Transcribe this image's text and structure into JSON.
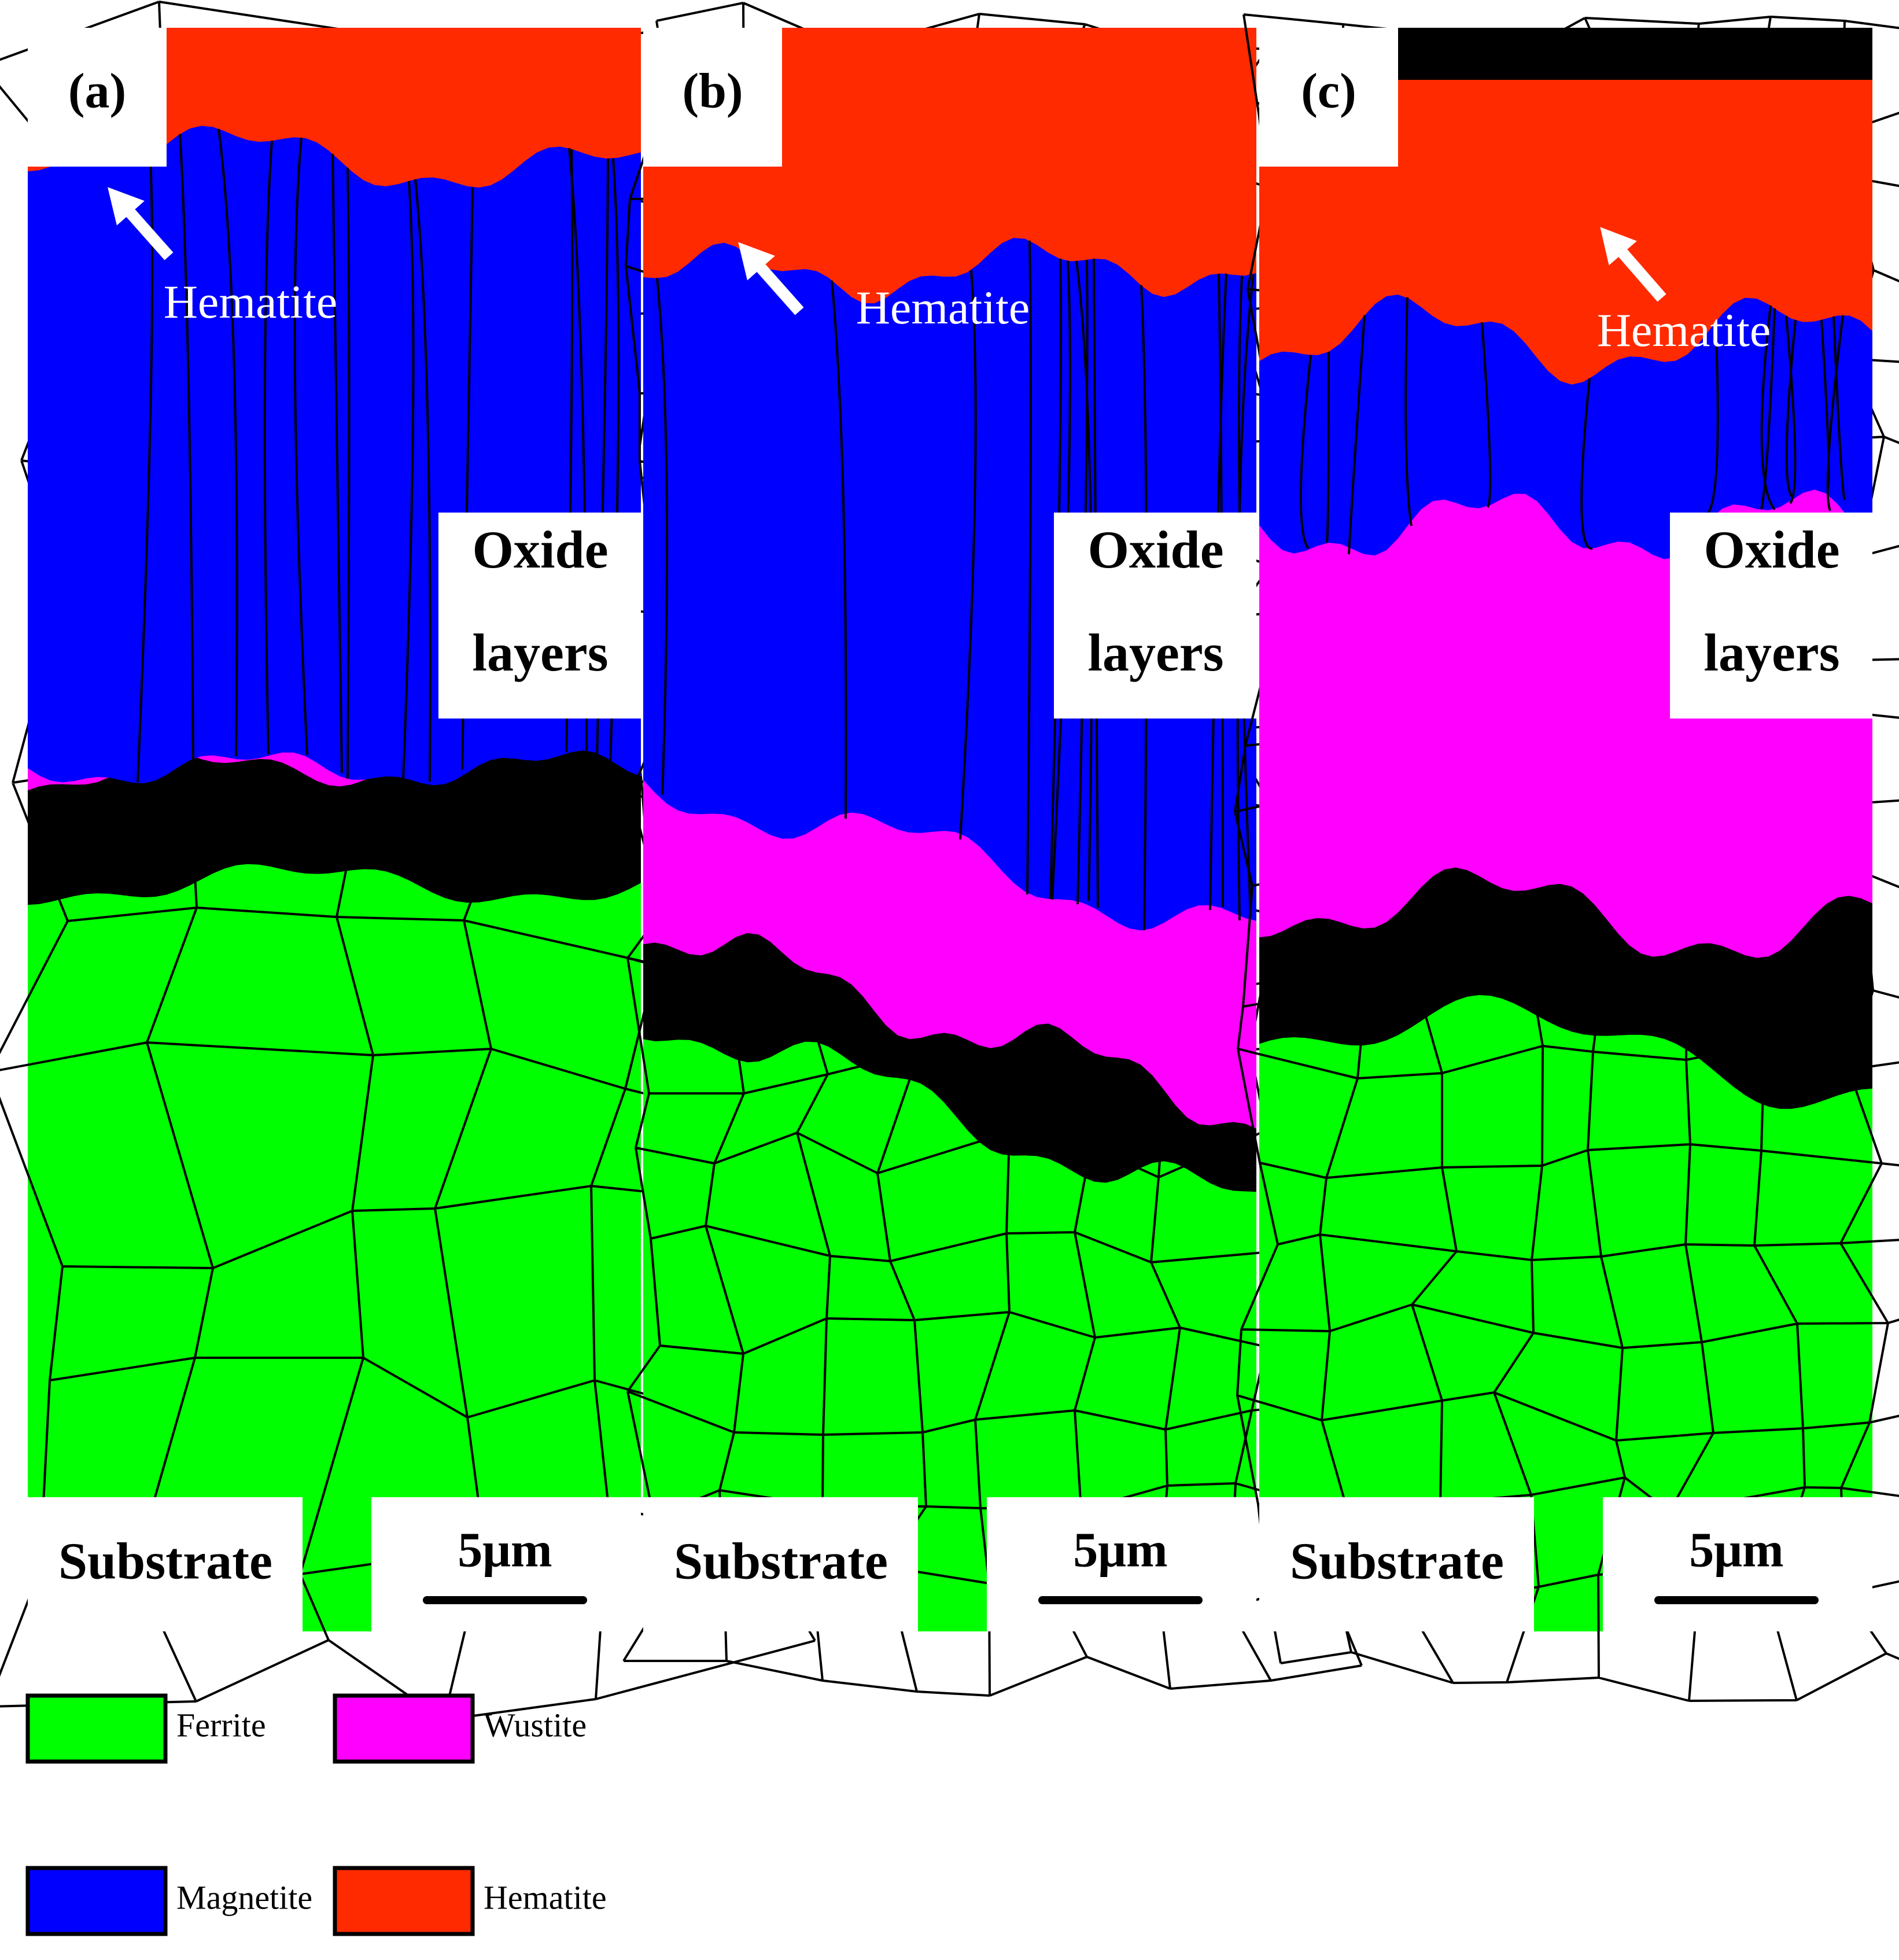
{
  "panels": [
    {
      "label": "(a)",
      "annotation": "Hematite",
      "region_label": {
        "line1": "Oxide",
        "line2": "layers"
      },
      "substrate_label": "Substrate",
      "scale_bar": "5μm"
    },
    {
      "label": "(b)",
      "annotation": "Hematite",
      "region_label": {
        "line1": "Oxide",
        "line2": "layers"
      },
      "substrate_label": "Substrate",
      "scale_bar": "5μm"
    },
    {
      "label": "(c)",
      "annotation": "Hematite",
      "region_label": {
        "line1": "Oxide",
        "line2": "layers"
      },
      "substrate_label": "Substrate",
      "scale_bar": "5μm"
    }
  ],
  "legend": [
    {
      "label": "Ferrite",
      "color": "#00ff00"
    },
    {
      "label": "Wustite",
      "color": "#ff00ff"
    },
    {
      "label": "Magnetite",
      "color": "#0000ff"
    },
    {
      "label": "Hematite",
      "color": "#ff2a00"
    }
  ]
}
